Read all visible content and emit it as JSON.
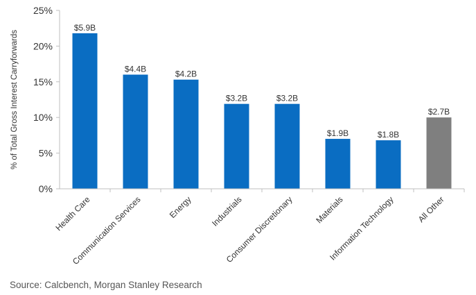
{
  "chart_data": {
    "type": "bar",
    "categories": [
      "Health Care",
      "Communication Services",
      "Energy",
      "Industrials",
      "Consumer Discretionary",
      "Materials",
      "Information Technology",
      "All Other"
    ],
    "values": [
      21.8,
      16.0,
      15.3,
      11.9,
      11.9,
      7.0,
      6.8,
      10.0
    ],
    "data_labels": [
      "$5.9B",
      "$4.4B",
      "$4.2B",
      "$3.2B",
      "$3.2B",
      "$1.9B",
      "$1.8B",
      "$2.7B"
    ],
    "ylabel": "% of Total Gross Interest Carryforwards",
    "ylim": [
      0,
      25
    ],
    "yticks": [
      0,
      5,
      10,
      15,
      20,
      25
    ],
    "ytick_labels": [
      "0%",
      "5%",
      "10%",
      "15%",
      "20%",
      "25%"
    ],
    "grid": false,
    "colors": {
      "bar": "#0a6dc2",
      "bar_highlight": "#7f7f7f",
      "axis": "#bfbfbf",
      "text": "#333333"
    },
    "highlight_category": "All Other"
  },
  "source": "Source: Calcbench, Morgan Stanley Research"
}
